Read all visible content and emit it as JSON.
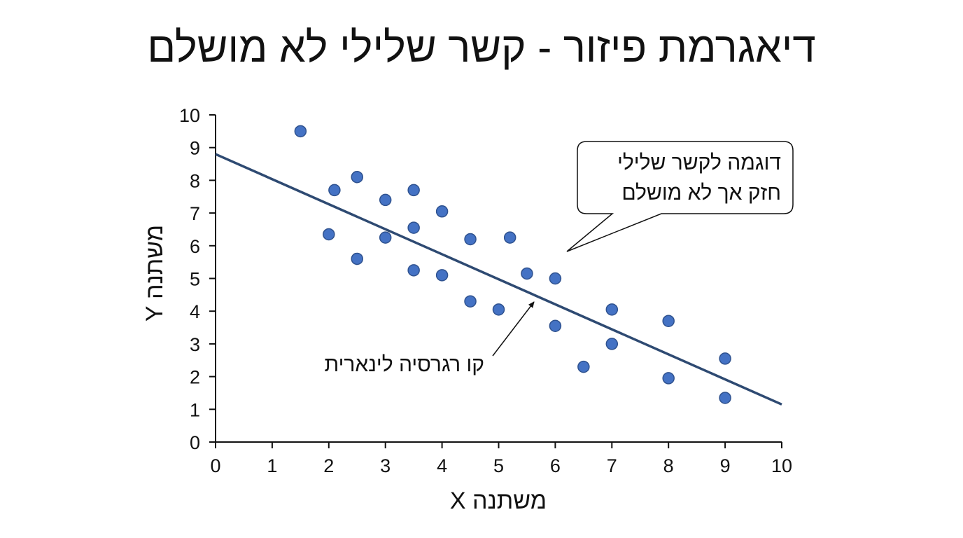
{
  "chart_data": {
    "type": "scatter",
    "title": "דיאגרמת פיזור - קשר שלילי לא מושלם",
    "xlabel": "משתנה X",
    "ylabel": "משתנה Y",
    "xlim": [
      0,
      10
    ],
    "ylim": [
      0,
      10
    ],
    "x_ticks": [
      "0",
      "1",
      "2",
      "3",
      "4",
      "5",
      "6",
      "7",
      "8",
      "9",
      "10"
    ],
    "y_ticks": [
      "0",
      "1",
      "2",
      "3",
      "4",
      "5",
      "6",
      "7",
      "8",
      "9",
      "10"
    ],
    "grid": false,
    "legend": "none",
    "points": [
      {
        "x": 1.5,
        "y": 9.5
      },
      {
        "x": 2.0,
        "y": 6.35
      },
      {
        "x": 2.1,
        "y": 7.7
      },
      {
        "x": 2.5,
        "y": 8.1
      },
      {
        "x": 2.5,
        "y": 5.6
      },
      {
        "x": 3.0,
        "y": 7.4
      },
      {
        "x": 3.0,
        "y": 6.25
      },
      {
        "x": 3.5,
        "y": 7.7
      },
      {
        "x": 3.5,
        "y": 6.55
      },
      {
        "x": 3.5,
        "y": 5.25
      },
      {
        "x": 4.0,
        "y": 7.05
      },
      {
        "x": 4.0,
        "y": 5.1
      },
      {
        "x": 4.5,
        "y": 6.2
      },
      {
        "x": 4.5,
        "y": 4.3
      },
      {
        "x": 5.0,
        "y": 4.05
      },
      {
        "x": 5.2,
        "y": 6.25
      },
      {
        "x": 5.5,
        "y": 5.15
      },
      {
        "x": 6.0,
        "y": 5.0
      },
      {
        "x": 6.0,
        "y": 3.55
      },
      {
        "x": 6.5,
        "y": 2.3
      },
      {
        "x": 7.0,
        "y": 4.05
      },
      {
        "x": 7.0,
        "y": 3.0
      },
      {
        "x": 8.0,
        "y": 3.7
      },
      {
        "x": 8.0,
        "y": 1.95
      },
      {
        "x": 9.0,
        "y": 2.55
      },
      {
        "x": 9.0,
        "y": 1.35
      }
    ],
    "regression_line": {
      "x": [
        0,
        10
      ],
      "y": [
        8.8,
        1.15
      ]
    },
    "annotations": {
      "regression_label": "קו רגרסיה לינארית",
      "callout_line1": "דוגמה לקשר שלילי",
      "callout_line2": "חזק אך לא מושלם"
    },
    "colors": {
      "point_fill": "#4472C4",
      "point_stroke": "#2F528F",
      "line": "#2E4A72",
      "axis": "#111111"
    }
  }
}
